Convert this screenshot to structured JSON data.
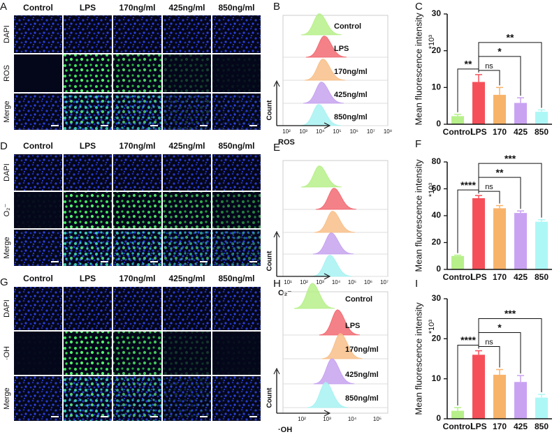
{
  "image_panels": [
    {
      "letter": "A",
      "columns": [
        "Control",
        "LPS",
        "170ng/ml",
        "425ng/ml",
        "850ng/ml"
      ],
      "rows": [
        "DAPI",
        "ROS",
        "Merge"
      ]
    },
    {
      "letter": "D",
      "columns": [
        "Control",
        "LPS",
        "170ng/ml",
        "425ng/ml",
        "850ng/ml"
      ],
      "rows": [
        "DAPI",
        "O₂⁻",
        "Merge"
      ]
    },
    {
      "letter": "G",
      "columns": [
        "Control",
        "LPS",
        "170ng/ml",
        "425ng/ml",
        "850ng/ml"
      ],
      "rows": [
        "DAPI",
        "·OH",
        "Merge"
      ]
    }
  ],
  "flow_panels": [
    {
      "letter": "B",
      "samples": [
        "Control",
        "LPS",
        "170ng/ml",
        "425ng/ml",
        "850ng/ml"
      ],
      "colors": [
        "#b7f08a",
        "#f26b73",
        "#f8c08a",
        "#c7a3f0",
        "#a8f2f2"
      ],
      "ylabel": "Count",
      "xlabel": "ROS",
      "xtick_labels": [
        "10²",
        "10³",
        "10⁴",
        "10⁵",
        "10⁶",
        "10⁷",
        "10⁸"
      ]
    },
    {
      "letter": "E",
      "colors": [
        "#b7f08a",
        "#f26b73",
        "#f8c08a",
        "#c7a3f0",
        "#a8f2f2"
      ],
      "ylabel": "Count",
      "xlabel": "O₂⁻",
      "xtick_labels": [
        "10¹",
        "10²",
        "10³",
        "10⁴",
        "10⁵",
        "10⁶",
        "10⁷"
      ]
    },
    {
      "letter": "H",
      "samples": [
        "Control",
        "LPS",
        "170ng/ml",
        "425ng/ml",
        "850ng/ml"
      ],
      "colors": [
        "#b7f08a",
        "#f26b73",
        "#f8c08a",
        "#c7a3f0",
        "#a8f2f2"
      ],
      "ylabel": "Count",
      "xlabel": "·OH",
      "xtick_labels": [
        "10²",
        "10³",
        "10⁴",
        "10⁵"
      ]
    }
  ],
  "chart_data": [
    {
      "letter": "C",
      "type": "bar",
      "ylabel": "Mean fluorescence intensity",
      "unit_label": "*10³",
      "categories": [
        "Control",
        "LPS",
        "170",
        "425",
        "850"
      ],
      "values": [
        2.2,
        11.5,
        8,
        5.8,
        3.4
      ],
      "errors": [
        0.5,
        2,
        2,
        1.4,
        0.5
      ],
      "colors": [
        "#b7f08a",
        "#f5505a",
        "#f8b36b",
        "#c9a3f2",
        "#aef7f7"
      ],
      "ylim": [
        0,
        30
      ],
      "yticks": [
        0,
        10,
        20,
        30
      ],
      "significance": [
        {
          "pair": [
            "Control",
            "LPS"
          ],
          "label": "**"
        },
        {
          "pair": [
            "LPS",
            "170"
          ],
          "label": "ns"
        },
        {
          "pair": [
            "LPS",
            "425"
          ],
          "label": "*"
        },
        {
          "pair": [
            "LPS",
            "850"
          ],
          "label": "**"
        }
      ]
    },
    {
      "letter": "F",
      "type": "bar",
      "ylabel": "Mean fluorescence intensity",
      "unit_label": "*10³",
      "categories": [
        "Control",
        "LPS",
        "170",
        "425",
        "850"
      ],
      "values": [
        10,
        53,
        45.5,
        42,
        35.5
      ],
      "errors": [
        0.6,
        2,
        2,
        1.5,
        1.5
      ],
      "colors": [
        "#b7f08a",
        "#f5505a",
        "#f8b36b",
        "#c9a3f2",
        "#aef7f7"
      ],
      "ylim": [
        0,
        80
      ],
      "yticks": [
        0,
        20,
        40,
        60,
        80
      ],
      "significance": [
        {
          "pair": [
            "Control",
            "LPS"
          ],
          "label": "****"
        },
        {
          "pair": [
            "LPS",
            "170"
          ],
          "label": "ns"
        },
        {
          "pair": [
            "LPS",
            "425"
          ],
          "label": "**"
        },
        {
          "pair": [
            "LPS",
            "850"
          ],
          "label": "***"
        }
      ]
    },
    {
      "letter": "I",
      "type": "bar",
      "ylabel": "Mean fluorescence intensity",
      "unit_label": "*10³",
      "categories": [
        "Control",
        "LPS",
        "170",
        "425",
        "850"
      ],
      "values": [
        2,
        16,
        11,
        9.2,
        5.3
      ],
      "errors": [
        0.8,
        1,
        1.3,
        1.6,
        0.8
      ],
      "colors": [
        "#b7f08a",
        "#f5505a",
        "#f8b36b",
        "#c9a3f2",
        "#aef7f7"
      ],
      "ylim": [
        0,
        30
      ],
      "yticks": [
        0,
        10,
        20,
        30
      ],
      "significance": [
        {
          "pair": [
            "Control",
            "LPS"
          ],
          "label": "****"
        },
        {
          "pair": [
            "LPS",
            "170"
          ],
          "label": "ns"
        },
        {
          "pair": [
            "LPS",
            "425"
          ],
          "label": "*"
        },
        {
          "pair": [
            "LPS",
            "850"
          ],
          "label": "***"
        }
      ]
    }
  ]
}
